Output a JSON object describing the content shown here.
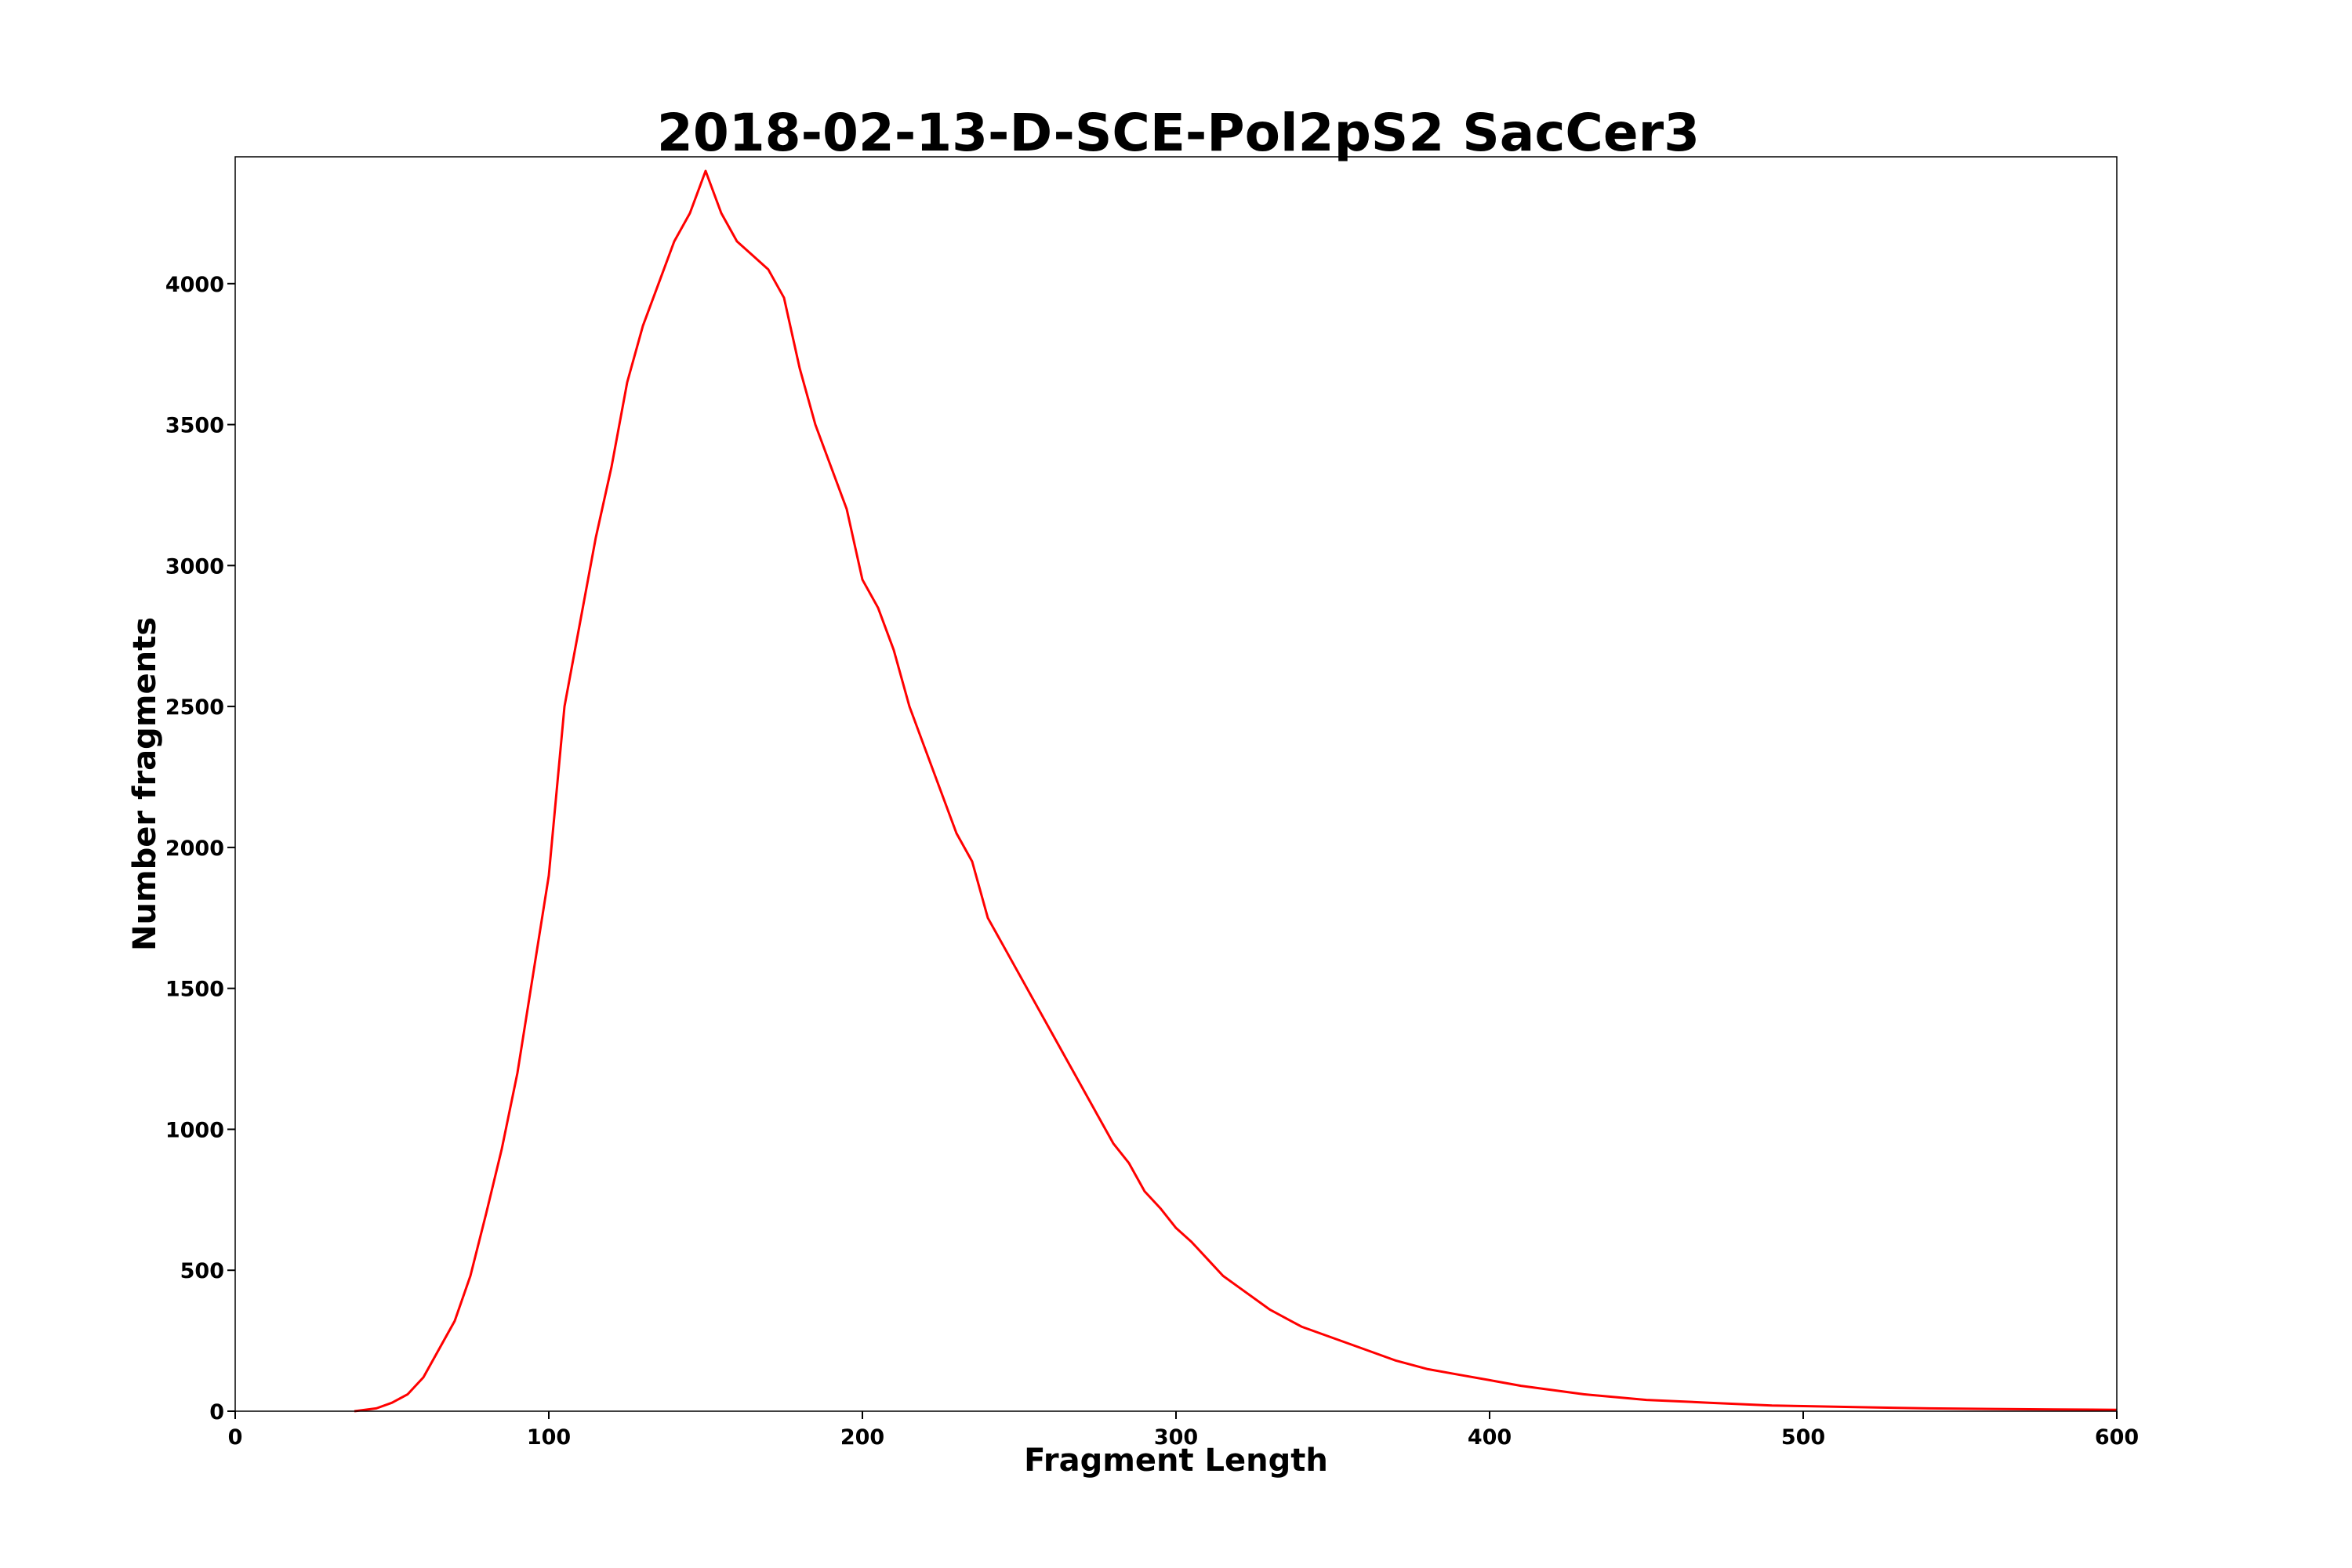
{
  "chart_data": {
    "type": "line",
    "title": "2018-02-13-D-SCE-Pol2pS2 SacCer3",
    "xlabel": "Fragment Length",
    "ylabel": "Number fragments",
    "xlim": [
      0,
      600
    ],
    "ylim": [
      0,
      4450
    ],
    "grid": false,
    "legend": "none",
    "x_ticks": [
      0,
      100,
      200,
      300,
      400,
      500,
      600
    ],
    "y_ticks": [
      0,
      500,
      1000,
      1500,
      2000,
      2500,
      3000,
      3500,
      4000
    ],
    "series": [
      {
        "color": "#ff0000",
        "x": [
          38,
          45,
          50,
          55,
          60,
          65,
          70,
          75,
          80,
          85,
          90,
          95,
          100,
          105,
          110,
          115,
          120,
          125,
          130,
          135,
          140,
          145,
          150,
          155,
          160,
          165,
          170,
          175,
          180,
          185,
          190,
          195,
          200,
          205,
          210,
          215,
          220,
          225,
          230,
          235,
          240,
          245,
          250,
          255,
          260,
          265,
          270,
          275,
          280,
          285,
          290,
          295,
          300,
          305,
          310,
          315,
          320,
          330,
          340,
          350,
          360,
          370,
          380,
          390,
          400,
          410,
          420,
          430,
          440,
          450,
          460,
          470,
          480,
          490,
          500,
          520,
          540,
          560,
          580,
          600
        ],
        "y": [
          0,
          10,
          30,
          60,
          120,
          220,
          320,
          480,
          700,
          930,
          1200,
          1550,
          1900,
          2500,
          2800,
          3100,
          3350,
          3650,
          3850,
          4000,
          4150,
          4250,
          4400,
          4250,
          4150,
          4100,
          4050,
          3950,
          3700,
          3500,
          3350,
          3200,
          2950,
          2850,
          2700,
          2500,
          2350,
          2200,
          2050,
          1950,
          1750,
          1650,
          1550,
          1450,
          1350,
          1250,
          1150,
          1050,
          950,
          880,
          780,
          720,
          650,
          600,
          540,
          480,
          440,
          360,
          300,
          260,
          220,
          180,
          150,
          130,
          110,
          90,
          75,
          60,
          50,
          40,
          35,
          30,
          25,
          20,
          18,
          14,
          10,
          8,
          6,
          5
        ]
      }
    ]
  }
}
